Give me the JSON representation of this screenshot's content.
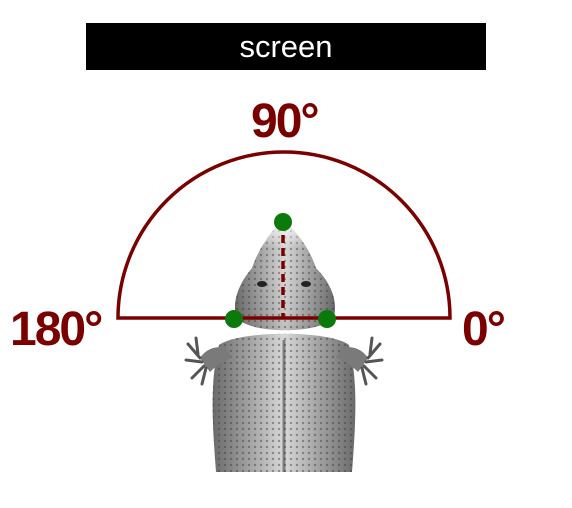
{
  "screen": {
    "label": "screen",
    "background": "#000000",
    "text_color": "#ffffff"
  },
  "angles": {
    "top": "90°",
    "left": "180°",
    "right": "0°"
  },
  "colors": {
    "arc": "#7a0000",
    "label": "#7a0000",
    "marker": "#0b7a0b",
    "animal": "#8a8a8a"
  },
  "figure": {
    "subject_icon": "bearded-dragon-top-view-icon",
    "marker_count": 3
  }
}
